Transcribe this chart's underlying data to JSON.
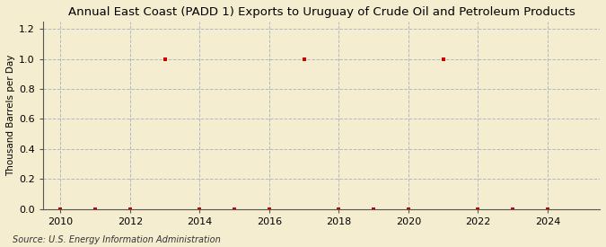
{
  "title": "Annual East Coast (PADD 1) Exports to Uruguay of Crude Oil and Petroleum Products",
  "ylabel": "Thousand Barrels per Day",
  "source": "Source: U.S. Energy Information Administration",
  "background_color": "#f5edcf",
  "plot_background_color": "#f5edcf",
  "marker_color": "#cc0000",
  "marker_size": 3.5,
  "grid_color": "#b0b8c8",
  "xlim": [
    2009.5,
    2025.5
  ],
  "ylim": [
    0.0,
    1.25
  ],
  "xticks": [
    2010,
    2012,
    2014,
    2016,
    2018,
    2020,
    2022,
    2024
  ],
  "yticks": [
    0.0,
    0.2,
    0.4,
    0.6,
    0.8,
    1.0,
    1.2
  ],
  "years": [
    2010,
    2011,
    2012,
    2013,
    2014,
    2015,
    2016,
    2017,
    2018,
    2019,
    2020,
    2021,
    2022,
    2023,
    2024
  ],
  "values": [
    0.0,
    0.0,
    0.0,
    1.0,
    0.0,
    0.0,
    0.0,
    1.0,
    0.0,
    0.0,
    0.0,
    1.0,
    0.0,
    0.0,
    0.0
  ],
  "title_fontsize": 9.5,
  "axis_fontsize": 7.5,
  "tick_fontsize": 8,
  "source_fontsize": 7
}
